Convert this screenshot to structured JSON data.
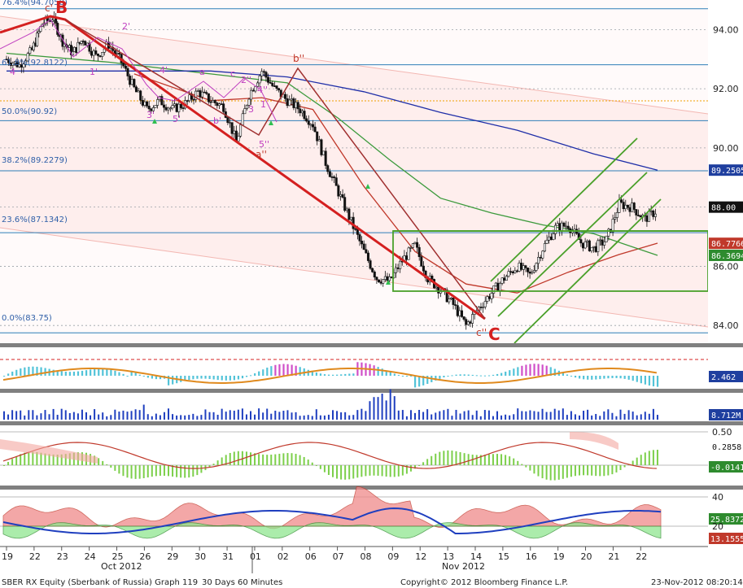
{
  "chart_data": {
    "type": "line",
    "title": "SBER RX Equity (Sberbank of Russia) Graph 119",
    "timeframe": "30 Days 60 Minutes",
    "instrument": "SBER RX Equity",
    "price_axis": {
      "range": [
        83.4,
        95.0
      ],
      "ticks": [
        "94.00",
        "92.00",
        "90.00",
        "88.00",
        "86.00",
        "84.00"
      ],
      "tick_values": [
        94,
        92,
        90,
        88,
        86,
        84
      ]
    },
    "x_axis": {
      "day_labels": [
        "19",
        "22",
        "23",
        "24",
        "25",
        "26",
        "29",
        "30",
        "31",
        "01",
        "02",
        "06",
        "07",
        "08",
        "09",
        "12",
        "13",
        "14",
        "15",
        "16",
        "19",
        "20",
        "21",
        "22"
      ],
      "month_labels": [
        "Oct 2012",
        "Nov 2012"
      ]
    },
    "fibonacci_levels": [
      {
        "label": "76.4%(94.7058)",
        "value": 94.7058
      },
      {
        "label": "61.8%(92.8122)",
        "value": 92.8122
      },
      {
        "label": "50.0%(90.92)",
        "value": 90.92
      },
      {
        "label": "38.2%(89.2279)",
        "value": 89.2279
      },
      {
        "label": "23.6%(87.1342)",
        "value": 87.1342
      },
      {
        "label": "0.0%(83.75)",
        "value": 83.75
      }
    ],
    "price_tags": [
      {
        "label": "89.2505",
        "value": 89.2505,
        "color": "#1f3f9f"
      },
      {
        "label": "88.00",
        "value": 88.0,
        "color": "#111111"
      },
      {
        "label": "86.7766",
        "value": 86.7766,
        "color": "#c0392b"
      },
      {
        "label": "86.3694",
        "value": 86.3694,
        "color": "#2e8b2e"
      }
    ],
    "wave_labels": [
      {
        "text": "B",
        "kind": "big"
      },
      {
        "text": "C",
        "kind": "big"
      },
      {
        "text": "c'",
        "kind": "red"
      },
      {
        "text": "b''",
        "kind": "red"
      },
      {
        "text": "a''",
        "kind": "red"
      },
      {
        "text": "c''",
        "kind": "red"
      },
      {
        "text": "2'",
        "kind": "mag"
      },
      {
        "text": "1'",
        "kind": "mag"
      },
      {
        "text": "4'",
        "kind": "mag"
      },
      {
        "text": "3'",
        "kind": "mag"
      },
      {
        "text": "5'",
        "kind": "mag"
      },
      {
        "text": "a",
        "kind": "mag"
      },
      {
        "text": "b'",
        "kind": "mag"
      },
      {
        "text": "c",
        "kind": "mag"
      },
      {
        "text": "2''",
        "kind": "mag"
      },
      {
        "text": "4''",
        "kind": "mag"
      },
      {
        "text": "3",
        "kind": "mag"
      },
      {
        "text": "5''",
        "kind": "mag"
      },
      {
        "text": "1",
        "kind": "mag"
      },
      {
        "text": "4",
        "kind": "mag"
      }
    ],
    "close_series": [
      {
        "d": 0,
        "v": 93.0
      },
      {
        "d": 0.5,
        "v": 92.8
      },
      {
        "d": 1,
        "v": 93.3
      },
      {
        "d": 1.4,
        "v": 94.2
      },
      {
        "d": 1.8,
        "v": 94.4
      },
      {
        "d": 2.2,
        "v": 93.6
      },
      {
        "d": 2.6,
        "v": 93.2
      },
      {
        "d": 3,
        "v": 93.7
      },
      {
        "d": 3.5,
        "v": 93.1
      },
      {
        "d": 4,
        "v": 93.5
      },
      {
        "d": 4.5,
        "v": 92.9
      },
      {
        "d": 5,
        "v": 92.0
      },
      {
        "d": 5.5,
        "v": 91.3
      },
      {
        "d": 6,
        "v": 91.6
      },
      {
        "d": 6.5,
        "v": 91.3
      },
      {
        "d": 7,
        "v": 91.5
      },
      {
        "d": 7.5,
        "v": 91.9
      },
      {
        "d": 8,
        "v": 91.6
      },
      {
        "d": 8.5,
        "v": 91.4
      },
      {
        "d": 9,
        "v": 90.2
      },
      {
        "d": 9.5,
        "v": 91.8
      },
      {
        "d": 10,
        "v": 92.6
      },
      {
        "d": 10.5,
        "v": 92.0
      },
      {
        "d": 11,
        "v": 91.6
      },
      {
        "d": 11.5,
        "v": 91.3
      },
      {
        "d": 12,
        "v": 90.8
      },
      {
        "d": 12.5,
        "v": 89.5
      },
      {
        "d": 13,
        "v": 88.5
      },
      {
        "d": 13.5,
        "v": 87.5
      },
      {
        "d": 14,
        "v": 86.5
      },
      {
        "d": 14.5,
        "v": 85.6
      },
      {
        "d": 15,
        "v": 85.5
      },
      {
        "d": 15.5,
        "v": 86.2
      },
      {
        "d": 16,
        "v": 86.7
      },
      {
        "d": 16.5,
        "v": 85.6
      },
      {
        "d": 17,
        "v": 85.2
      },
      {
        "d": 17.5,
        "v": 84.7
      },
      {
        "d": 18,
        "v": 84.0
      },
      {
        "d": 18.5,
        "v": 84.6
      },
      {
        "d": 19,
        "v": 85.1
      },
      {
        "d": 19.5,
        "v": 85.6
      },
      {
        "d": 20,
        "v": 86.0
      },
      {
        "d": 20.5,
        "v": 85.7
      },
      {
        "d": 21,
        "v": 86.6
      },
      {
        "d": 21.5,
        "v": 87.3
      },
      {
        "d": 22,
        "v": 87.4
      },
      {
        "d": 22.5,
        "v": 86.8
      },
      {
        "d": 23,
        "v": 86.6
      },
      {
        "d": 23.5,
        "v": 86.9
      },
      {
        "d": 24,
        "v": 88.1
      },
      {
        "d": 24.5,
        "v": 88.0
      },
      {
        "d": 25,
        "v": 87.6
      },
      {
        "d": 25.5,
        "v": 87.9
      }
    ],
    "ma_fast": [
      {
        "d": 5,
        "v": 92.5
      },
      {
        "d": 8,
        "v": 91.6
      },
      {
        "d": 10,
        "v": 91.7
      },
      {
        "d": 12,
        "v": 91.3
      },
      {
        "d": 14,
        "v": 88.7
      },
      {
        "d": 16,
        "v": 86.5
      },
      {
        "d": 18,
        "v": 85.4
      },
      {
        "d": 20,
        "v": 85.1
      },
      {
        "d": 22,
        "v": 85.8
      },
      {
        "d": 24,
        "v": 86.4
      },
      {
        "d": 25.5,
        "v": 86.78
      }
    ],
    "ma_mid": [
      {
        "d": 0,
        "v": 93.2
      },
      {
        "d": 4,
        "v": 92.9
      },
      {
        "d": 8,
        "v": 92.5
      },
      {
        "d": 11,
        "v": 92.2
      },
      {
        "d": 13,
        "v": 91.0
      },
      {
        "d": 15,
        "v": 89.6
      },
      {
        "d": 17,
        "v": 88.3
      },
      {
        "d": 19,
        "v": 87.8
      },
      {
        "d": 21,
        "v": 87.4
      },
      {
        "d": 23,
        "v": 87.1
      },
      {
        "d": 25.5,
        "v": 86.37
      }
    ],
    "ma_slow": [
      {
        "d": 0,
        "v": 92.6
      },
      {
        "d": 4,
        "v": 92.6
      },
      {
        "d": 8,
        "v": 92.6
      },
      {
        "d": 11,
        "v": 92.4
      },
      {
        "d": 14,
        "v": 91.9
      },
      {
        "d": 17,
        "v": 91.2
      },
      {
        "d": 20,
        "v": 90.6
      },
      {
        "d": 23,
        "v": 89.8
      },
      {
        "d": 25.5,
        "v": 89.25
      }
    ],
    "indicator_panels": [
      {
        "name": "macd-histogram",
        "tag": "2.462",
        "tag_color": "#1f3f9f"
      },
      {
        "name": "volume",
        "tag": "8.712M",
        "tag_color": "#1f3f9f"
      },
      {
        "name": "oscillator",
        "ticks": [
          "0.50"
        ],
        "tag_upper": "0.2858",
        "tag_lower": "-0.0141",
        "tag_lower_color": "#2e8b2e"
      },
      {
        "name": "dmi",
        "ticks": [
          "40",
          "20"
        ],
        "tag_upper": "25.8372",
        "tag_upper_color": "#2e8b2e",
        "tag_lower": "13.1555",
        "tag_lower_color": "#c0392b"
      }
    ],
    "grid": true
  },
  "footer": {
    "left": "SBER RX Equity (Sberbank of Russia) Graph 119",
    "center_left": "30 Days 60 Minutes",
    "center": "Copyright© 2012 Bloomberg Finance L.P.",
    "right": "23-Nov-2012 08:20:14"
  }
}
